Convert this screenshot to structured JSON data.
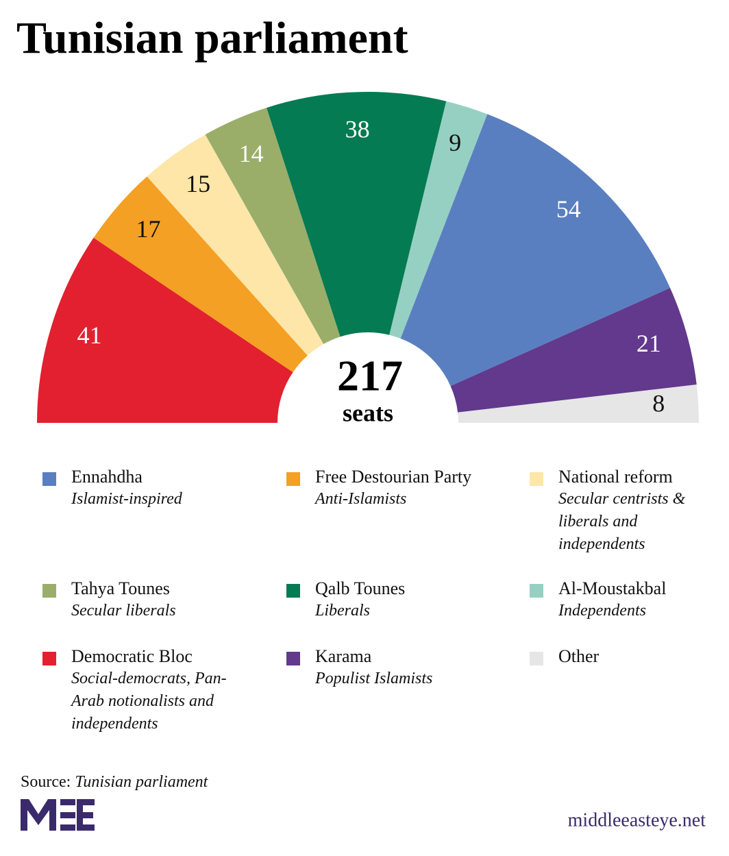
{
  "chart_data": {
    "type": "parliament",
    "title": "Tunisian parliament",
    "total": 217,
    "total_label": "seats",
    "series": [
      {
        "name": "Democratic Bloc",
        "description": "Social-democrats, Pan-Arab notionalists and independents",
        "color": "#e3202f",
        "value": 41
      },
      {
        "name": "Free Destourian Party",
        "description": "Anti-Islamists",
        "color": "#f4a024",
        "value": 17
      },
      {
        "name": "National reform",
        "description": "Secular centrists & liberals and independents",
        "color": "#fde6a8",
        "value": 15
      },
      {
        "name": "Tahya Tounes",
        "description": "Secular liberals",
        "color": "#9aae6a",
        "value": 14
      },
      {
        "name": "Qalb Tounes",
        "description": "Liberals",
        "color": "#047b52",
        "value": 38
      },
      {
        "name": "Al-Moustakbal",
        "description": "Independents",
        "color": "#96d0c3",
        "value": 9
      },
      {
        "name": "Ennahdha",
        "description": "Islamist-inspired",
        "color": "#5a7fc0",
        "value": 54
      },
      {
        "name": "Karama",
        "description": "Populist Islamists",
        "color": "#62398c",
        "value": 21
      },
      {
        "name": "Other",
        "color": "#e6e6e6",
        "value": 8
      }
    ],
    "source_label": "Source:",
    "source": "Tunisian parliament",
    "website": "middleeasteye.net"
  }
}
